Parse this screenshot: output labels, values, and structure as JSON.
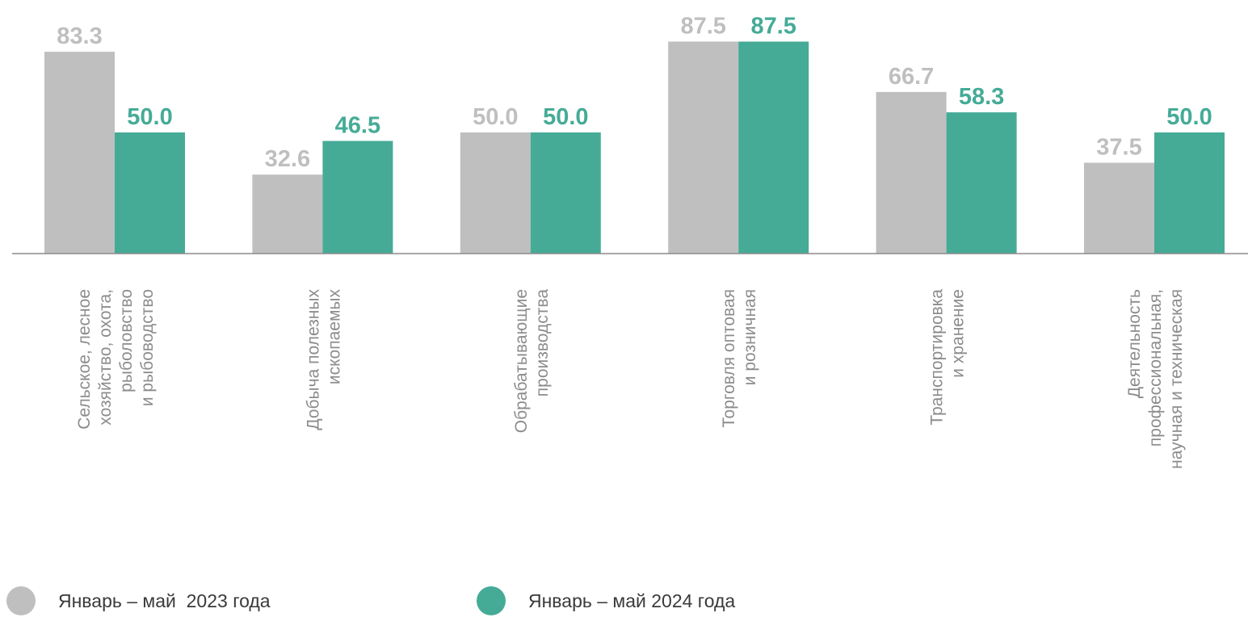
{
  "colors": {
    "series_2023": "#bfbfbf",
    "series_2024": "#45ab97",
    "axis": "#8c8c8c",
    "category_text": "#8c8c8c"
  },
  "legend": [
    {
      "label": "Январь – май  2023 года",
      "color": "#bfbfbf"
    },
    {
      "label": "Январь – май 2024 года",
      "color": "#45ab97"
    }
  ],
  "chart_data": {
    "type": "bar",
    "title": "",
    "xlabel": "",
    "ylabel": "",
    "ylim": [
      0,
      100
    ],
    "grid": false,
    "legend_position": "bottom-left",
    "categories": [
      [
        "Сельское, лесное",
        "хозяйство, охота,",
        "рыболовство",
        "и рыбоводство"
      ],
      [
        "Добыча полезных",
        "ископаемых"
      ],
      [
        "Обрабатывающие",
        "производства"
      ],
      [
        "Торговля оптовая",
        "и розничная"
      ],
      [
        "Транспортировка",
        "и хранение"
      ],
      [
        "Деятельность",
        "профессиональная,",
        "научная и техническая"
      ]
    ],
    "series": [
      {
        "name": "Январь – май  2023 года",
        "color": "#bfbfbf",
        "values": [
          83.3,
          32.6,
          50.0,
          87.5,
          66.7,
          37.5
        ]
      },
      {
        "name": "Январь – май 2024 года",
        "color": "#45ab97",
        "values": [
          50.0,
          46.5,
          50.0,
          87.5,
          58.3,
          50.0
        ]
      }
    ]
  }
}
